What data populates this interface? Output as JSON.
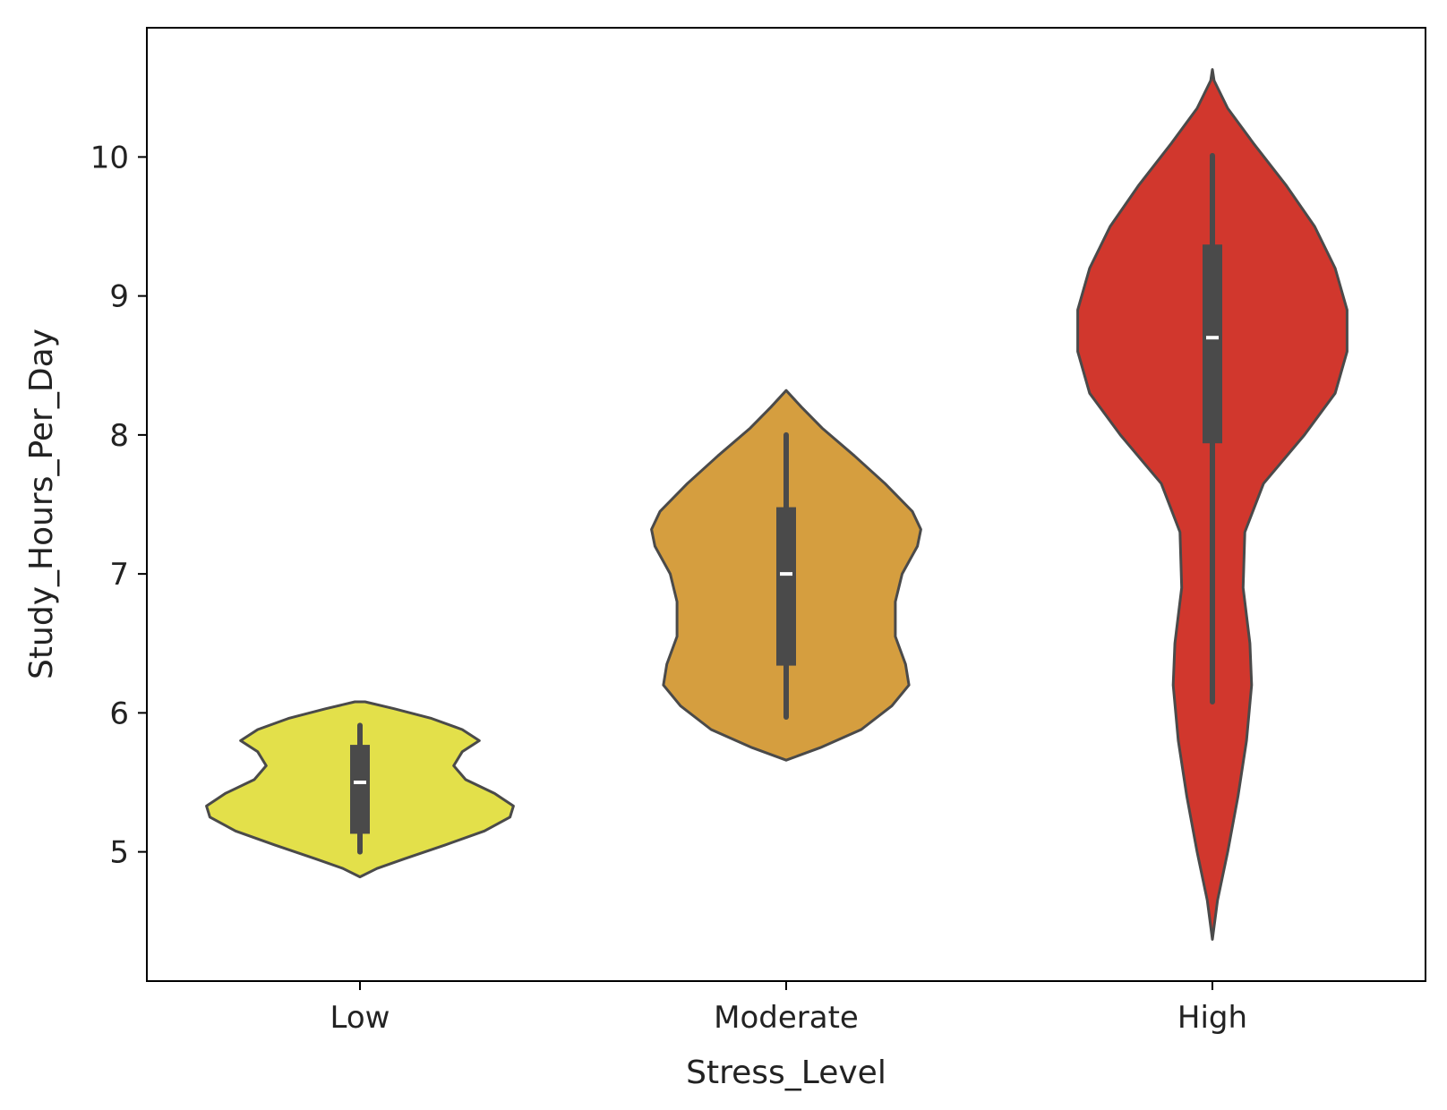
{
  "chart_data": {
    "type": "violin",
    "title": "",
    "xlabel": "Stress_Level",
    "ylabel": "Study_Hours_Per_Day",
    "categories": [
      "Low",
      "Moderate",
      "High"
    ],
    "ylim": [
      4.07,
      10.93
    ],
    "yticks": [
      5,
      6,
      7,
      8,
      9,
      10
    ],
    "grid": false,
    "legend": "none",
    "violins": [
      {
        "category": "Low",
        "color": "#e3e04a",
        "min": 5.0,
        "q1": 5.13,
        "median": 5.5,
        "q3": 5.77,
        "max": 5.91,
        "density": [
          [
            4.82,
            0.0
          ],
          [
            4.88,
            0.1
          ],
          [
            4.95,
            0.26
          ],
          [
            5.05,
            0.5
          ],
          [
            5.15,
            0.73
          ],
          [
            5.25,
            0.88
          ],
          [
            5.33,
            0.9
          ],
          [
            5.42,
            0.79
          ],
          [
            5.52,
            0.62
          ],
          [
            5.62,
            0.55
          ],
          [
            5.72,
            0.6
          ],
          [
            5.8,
            0.7
          ],
          [
            5.88,
            0.6
          ],
          [
            5.96,
            0.42
          ],
          [
            6.03,
            0.2
          ],
          [
            6.08,
            0.03
          ]
        ]
      },
      {
        "category": "Moderate",
        "color": "#d59e3f",
        "min": 5.97,
        "q1": 6.34,
        "median": 7.0,
        "q3": 7.48,
        "max": 8.0,
        "density": [
          [
            5.66,
            0.0
          ],
          [
            5.75,
            0.2
          ],
          [
            5.88,
            0.44
          ],
          [
            6.05,
            0.62
          ],
          [
            6.2,
            0.72
          ],
          [
            6.35,
            0.7
          ],
          [
            6.55,
            0.64
          ],
          [
            6.8,
            0.64
          ],
          [
            7.0,
            0.68
          ],
          [
            7.2,
            0.77
          ],
          [
            7.32,
            0.79
          ],
          [
            7.45,
            0.74
          ],
          [
            7.65,
            0.58
          ],
          [
            7.85,
            0.4
          ],
          [
            8.05,
            0.21
          ],
          [
            8.2,
            0.09
          ],
          [
            8.32,
            0.0
          ]
        ]
      },
      {
        "category": "High",
        "color": "#d1372d",
        "min": 6.08,
        "q1": 7.94,
        "median": 8.7,
        "q3": 9.37,
        "max": 10.01,
        "density": [
          [
            4.37,
            0.0
          ],
          [
            4.65,
            0.03
          ],
          [
            5.0,
            0.09
          ],
          [
            5.4,
            0.15
          ],
          [
            5.8,
            0.2
          ],
          [
            6.2,
            0.23
          ],
          [
            6.5,
            0.22
          ],
          [
            6.9,
            0.18
          ],
          [
            7.3,
            0.19
          ],
          [
            7.65,
            0.3
          ],
          [
            8.0,
            0.54
          ],
          [
            8.3,
            0.72
          ],
          [
            8.6,
            0.79
          ],
          [
            8.9,
            0.79
          ],
          [
            9.2,
            0.72
          ],
          [
            9.5,
            0.6
          ],
          [
            9.8,
            0.43
          ],
          [
            10.1,
            0.24
          ],
          [
            10.35,
            0.09
          ],
          [
            10.55,
            0.01
          ],
          [
            10.63,
            0.0
          ]
        ]
      }
    ]
  }
}
